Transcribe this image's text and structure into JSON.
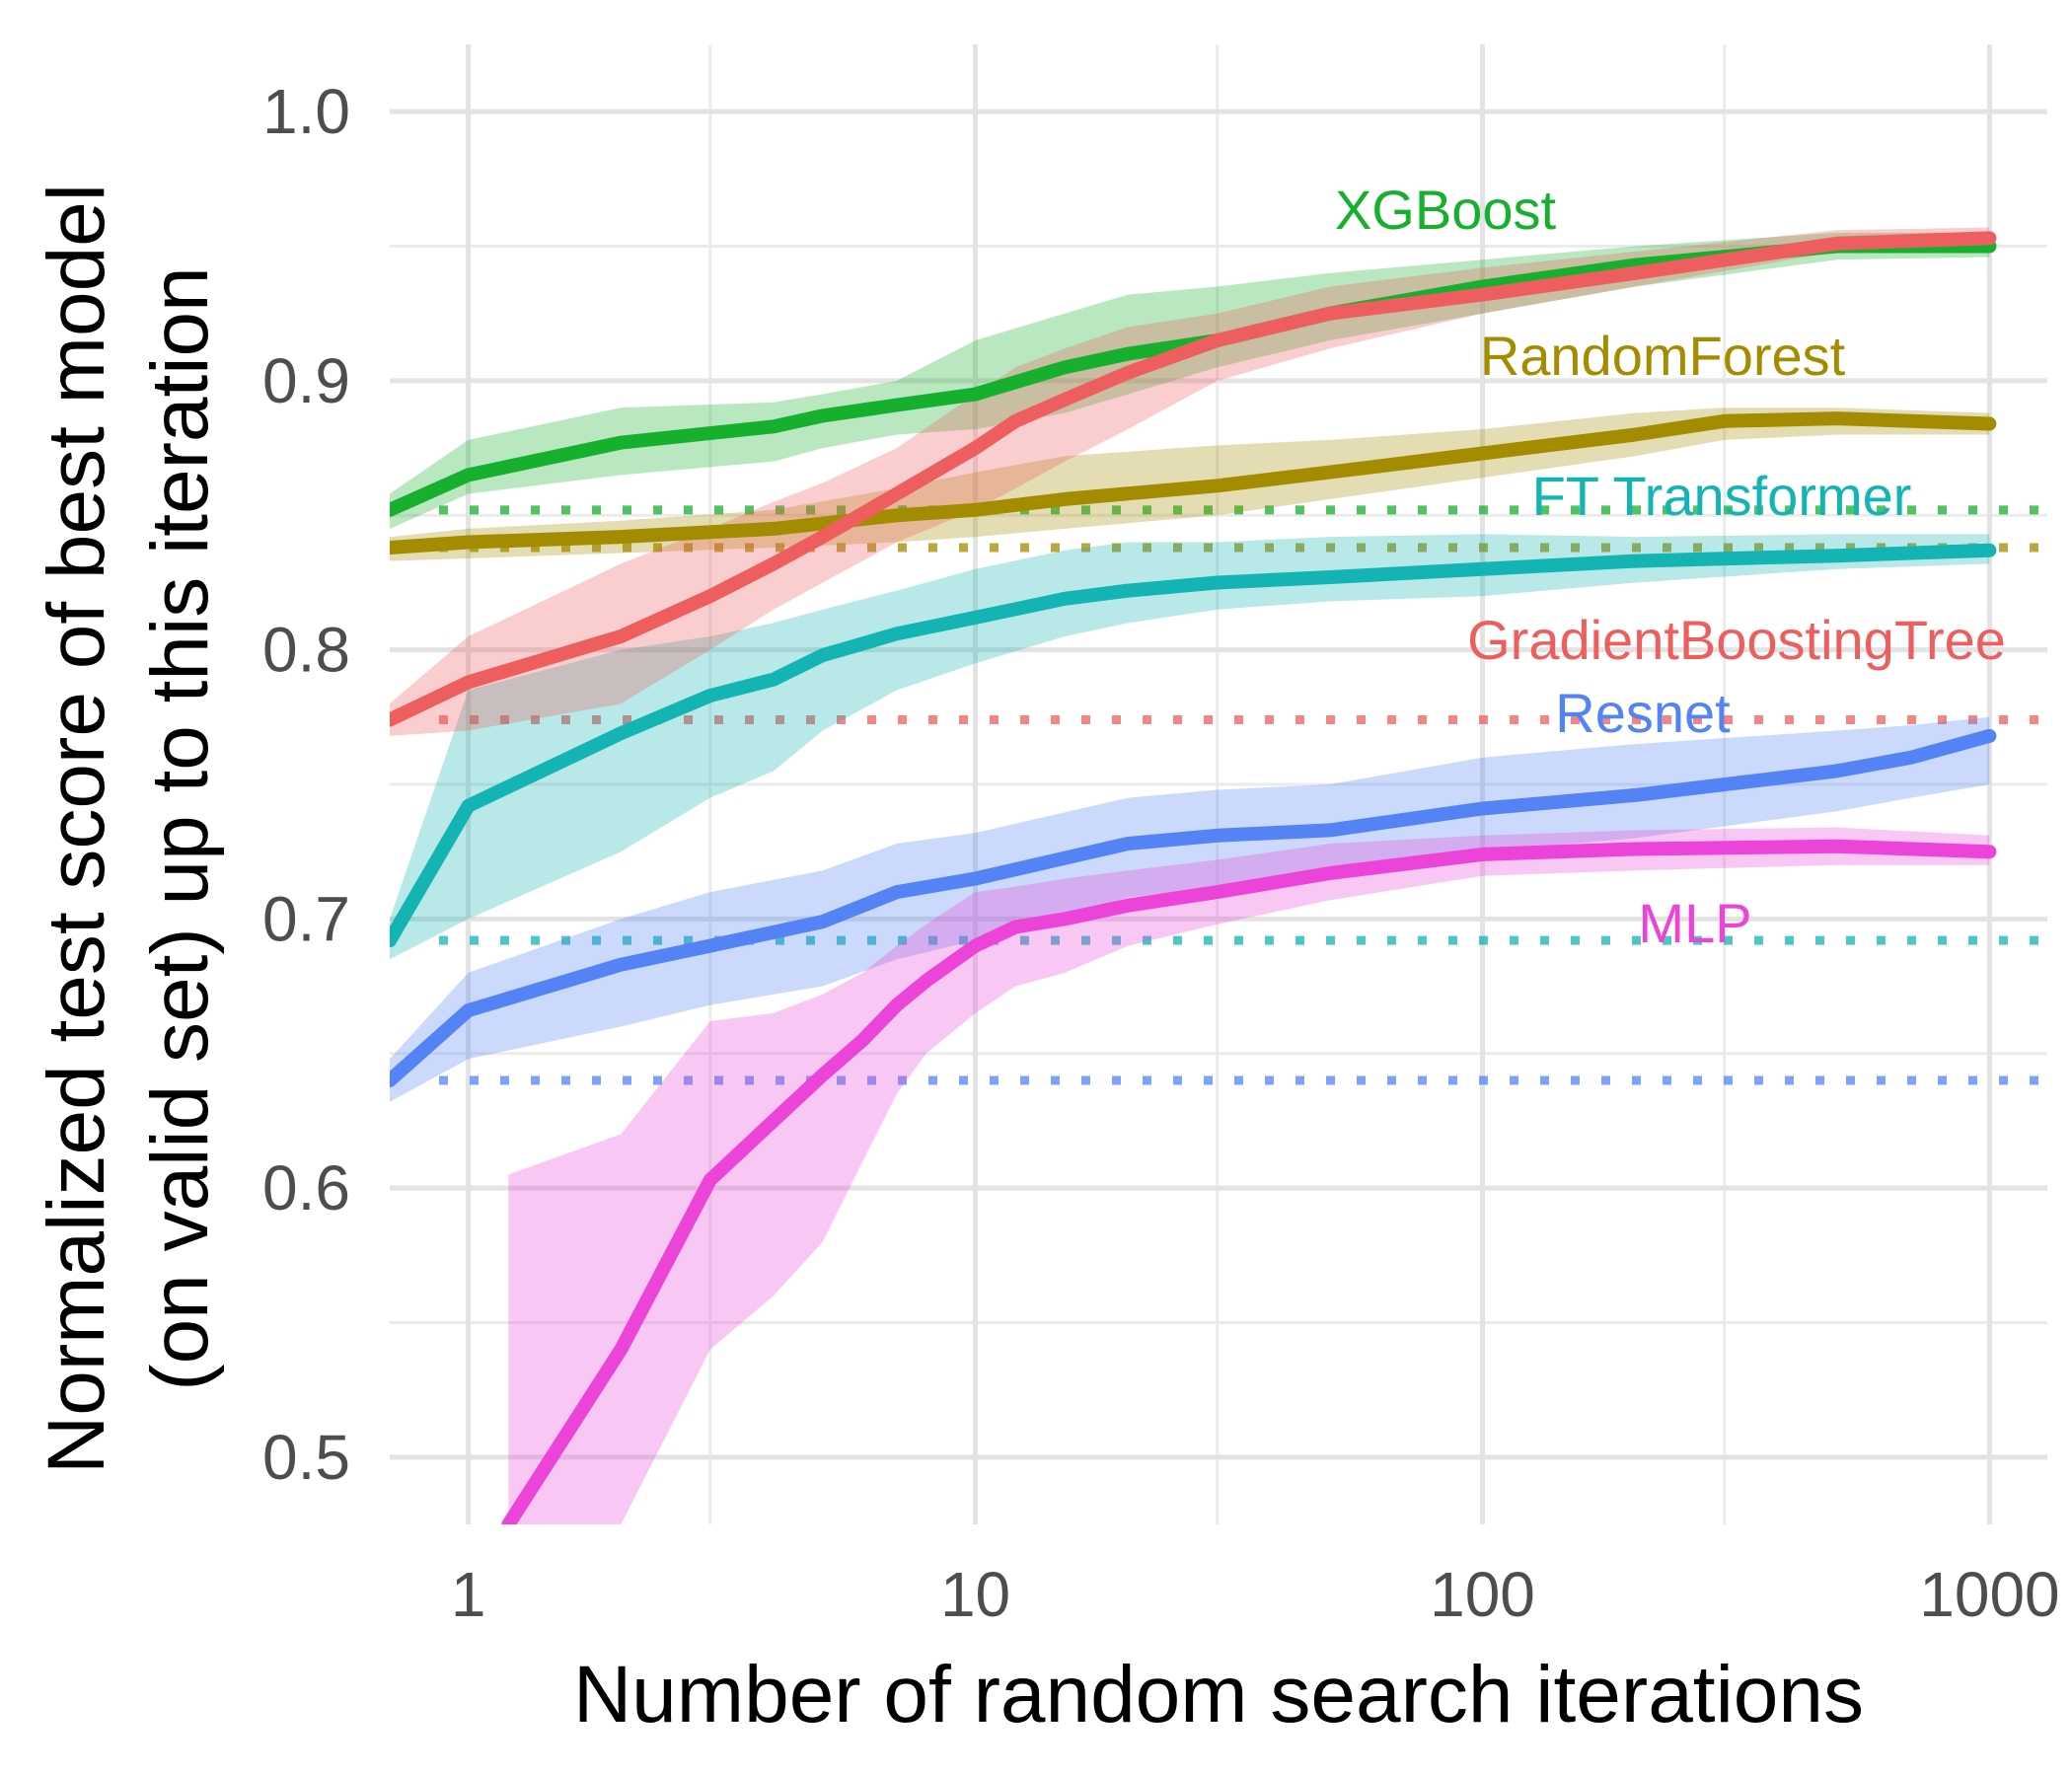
{
  "chart_data": {
    "type": "line",
    "xlabel": "Number of random search iterations",
    "ylabel_lines": [
      "Normalized test score of best model",
      "(on valid set) up to this iteration"
    ],
    "x_scale": "log",
    "xlim": [
      0.7,
      1300
    ],
    "ylim": [
      0.475,
      1.025
    ],
    "x_ticks": [
      1,
      10,
      100,
      1000
    ],
    "x_tick_labels": [
      "1",
      "10",
      "100",
      "1000"
    ],
    "y_ticks": [
      0.5,
      0.6,
      0.7,
      0.8,
      0.9,
      1.0
    ],
    "y_tick_labels": [
      "0.5",
      "0.6",
      "0.7",
      "0.8",
      "0.9",
      "1.0"
    ],
    "y_minor_ticks": [
      0.55,
      0.65,
      0.75,
      0.85,
      0.95
    ],
    "x_minor_ticks": [
      3,
      30,
      300
    ],
    "grid": true,
    "legend": "direct labels on lines",
    "series": [
      {
        "name": "XGBoost",
        "color": "#16b02e",
        "baseline": 0.852,
        "x": [
          0.7,
          1,
          2,
          4,
          5,
          7,
          10,
          15,
          20,
          30,
          50,
          100,
          200,
          500,
          1000
        ],
        "y": [
          0.852,
          0.865,
          0.877,
          0.883,
          0.887,
          0.891,
          0.895,
          0.905,
          0.91,
          0.915,
          0.925,
          0.935,
          0.943,
          0.95,
          0.95
        ],
        "lower": [
          0.845,
          0.858,
          0.865,
          0.87,
          0.875,
          0.88,
          0.882,
          0.888,
          0.895,
          0.905,
          0.915,
          0.925,
          0.935,
          0.945,
          0.946
        ],
        "upper": [
          0.858,
          0.878,
          0.89,
          0.892,
          0.895,
          0.9,
          0.915,
          0.925,
          0.932,
          0.935,
          0.94,
          0.945,
          0.95,
          0.955,
          0.955
        ]
      },
      {
        "name": "RandomForest",
        "color": "#a48c00",
        "baseline": 0.838,
        "x": [
          0.7,
          1,
          2,
          4,
          7,
          10,
          15,
          30,
          50,
          100,
          200,
          300,
          500,
          1000
        ],
        "y": [
          0.838,
          0.84,
          0.842,
          0.845,
          0.85,
          0.852,
          0.856,
          0.861,
          0.866,
          0.873,
          0.88,
          0.885,
          0.886,
          0.884
        ],
        "lower": [
          0.833,
          0.834,
          0.836,
          0.838,
          0.84,
          0.842,
          0.845,
          0.85,
          0.856,
          0.864,
          0.872,
          0.878,
          0.88,
          0.88
        ],
        "upper": [
          0.842,
          0.845,
          0.848,
          0.852,
          0.86,
          0.866,
          0.872,
          0.876,
          0.878,
          0.882,
          0.888,
          0.89,
          0.89,
          0.888
        ]
      },
      {
        "name": "FT Transformer",
        "color": "#14b4b4",
        "baseline": 0.692,
        "x": [
          0.7,
          1,
          2,
          3,
          4,
          5,
          7,
          10,
          15,
          20,
          30,
          50,
          100,
          200,
          500,
          1000
        ],
        "y": [
          0.692,
          0.742,
          0.769,
          0.783,
          0.789,
          0.798,
          0.806,
          0.812,
          0.819,
          0.822,
          0.825,
          0.827,
          0.83,
          0.833,
          0.835,
          0.837
        ],
        "lower": [
          0.685,
          0.7,
          0.725,
          0.745,
          0.755,
          0.77,
          0.785,
          0.795,
          0.805,
          0.81,
          0.815,
          0.818,
          0.82,
          0.825,
          0.83,
          0.832
        ],
        "upper": [
          0.7,
          0.785,
          0.8,
          0.805,
          0.81,
          0.815,
          0.822,
          0.83,
          0.837,
          0.84,
          0.84,
          0.842,
          0.843,
          0.842,
          0.843,
          0.843
        ]
      },
      {
        "name": "GradientBoostingTree",
        "color": "#ee5e5e",
        "baseline": 0.774,
        "x": [
          0.7,
          1,
          2,
          3,
          4,
          5,
          7,
          10,
          12,
          15,
          20,
          30,
          50,
          100,
          200,
          500,
          1000
        ],
        "y": [
          0.774,
          0.788,
          0.805,
          0.82,
          0.832,
          0.842,
          0.858,
          0.875,
          0.885,
          0.893,
          0.903,
          0.915,
          0.925,
          0.932,
          0.94,
          0.951,
          0.953
        ],
        "lower": [
          0.768,
          0.77,
          0.78,
          0.8,
          0.815,
          0.825,
          0.84,
          0.852,
          0.86,
          0.87,
          0.882,
          0.9,
          0.912,
          0.925,
          0.935,
          0.948,
          0.95
        ],
        "upper": [
          0.78,
          0.805,
          0.832,
          0.845,
          0.855,
          0.862,
          0.875,
          0.895,
          0.905,
          0.912,
          0.92,
          0.925,
          0.935,
          0.942,
          0.948,
          0.956,
          0.957
        ]
      },
      {
        "name": "Resnet",
        "color": "#5383f5",
        "baseline": 0.64,
        "x": [
          0.7,
          1,
          2,
          3,
          5,
          7,
          10,
          20,
          30,
          50,
          100,
          200,
          500,
          700,
          1000
        ],
        "y": [
          0.64,
          0.666,
          0.683,
          0.69,
          0.699,
          0.71,
          0.715,
          0.728,
          0.731,
          0.733,
          0.741,
          0.746,
          0.755,
          0.76,
          0.768
        ],
        "lower": [
          0.632,
          0.648,
          0.66,
          0.668,
          0.675,
          0.685,
          0.692,
          0.708,
          0.712,
          0.718,
          0.725,
          0.73,
          0.74,
          0.745,
          0.75
        ],
        "upper": [
          0.648,
          0.68,
          0.7,
          0.71,
          0.718,
          0.728,
          0.732,
          0.745,
          0.748,
          0.75,
          0.76,
          0.765,
          0.77,
          0.772,
          0.775
        ]
      },
      {
        "name": "MLP",
        "color": "#ec44d8",
        "baseline": null,
        "x": [
          1.2,
          2,
          3,
          4,
          5,
          6,
          7,
          8,
          10,
          12,
          15,
          20,
          30,
          50,
          100,
          200,
          500,
          1000
        ],
        "y": [
          0.475,
          0.54,
          0.603,
          0.625,
          0.642,
          0.655,
          0.668,
          0.677,
          0.69,
          0.697,
          0.7,
          0.705,
          0.71,
          0.717,
          0.724,
          0.726,
          0.727,
          0.725
        ],
        "lower": [
          0.475,
          0.475,
          0.54,
          0.56,
          0.58,
          0.61,
          0.635,
          0.65,
          0.665,
          0.675,
          0.68,
          0.69,
          0.698,
          0.707,
          0.716,
          0.718,
          0.72,
          0.72
        ],
        "upper": [
          0.605,
          0.62,
          0.662,
          0.665,
          0.672,
          0.68,
          0.69,
          0.698,
          0.71,
          0.712,
          0.715,
          0.718,
          0.722,
          0.728,
          0.731,
          0.733,
          0.734,
          0.731
        ]
      }
    ]
  }
}
